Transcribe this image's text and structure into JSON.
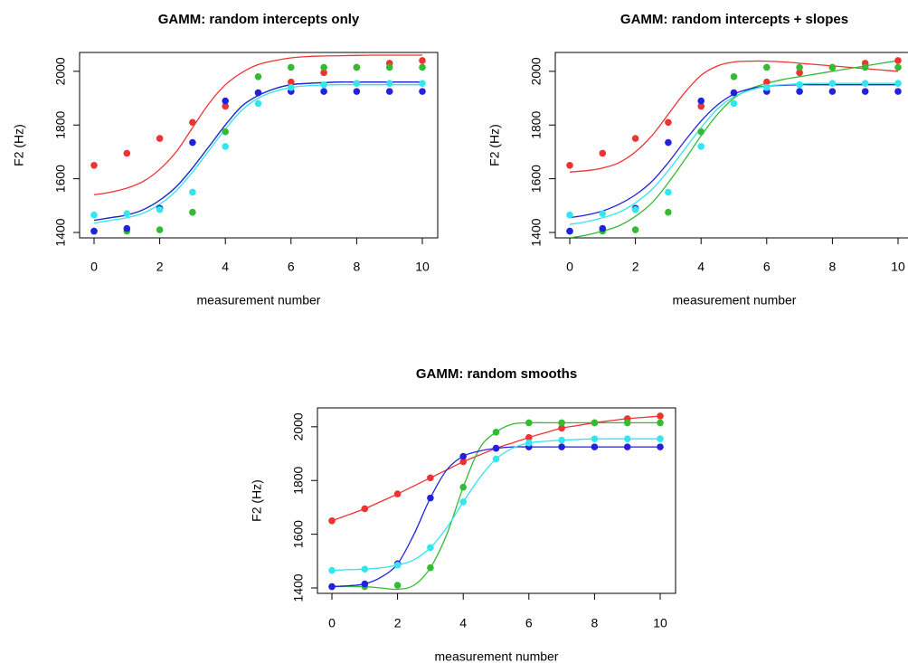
{
  "chart_data": [
    {
      "type": "scatter",
      "title": "GAMM: random intercepts only",
      "xlabel": "measurement number",
      "ylabel": "F2 (Hz)",
      "xlim": [
        0,
        10
      ],
      "ylim": [
        1400,
        2050
      ],
      "xticks": [
        "0",
        "2",
        "4",
        "6",
        "8",
        "10"
      ],
      "yticks": [
        "1400",
        "1600",
        "1800",
        "2000"
      ],
      "grid": false,
      "series": [
        {
          "color": "#ee3333",
          "points": [
            1650,
            1695,
            1750,
            1810,
            1870,
            1920,
            1960,
            1995,
            2015,
            2030,
            2040
          ],
          "curve": [
            1540,
            1550,
            1565,
            1590,
            1635,
            1700,
            1790,
            1880,
            1950,
            1995,
            2025,
            2040,
            2050,
            2055,
            2057,
            2058,
            2059,
            2060,
            2060,
            2060,
            2060
          ]
        },
        {
          "color": "#33bb33",
          "points": [
            1405,
            1405,
            1410,
            1475,
            1775,
            1980,
            2015,
            2015,
            2015,
            2015,
            2015
          ],
          "curve": [
            1445,
            1455,
            1465,
            1485,
            1520,
            1570,
            1640,
            1720,
            1800,
            1870,
            1910,
            1935,
            1950,
            1955,
            1958,
            1960,
            1960,
            1960,
            1960,
            1960,
            1960
          ]
        },
        {
          "color": "#2222dd",
          "points": [
            1405,
            1415,
            1490,
            1735,
            1890,
            1920,
            1925,
            1925,
            1925,
            1925,
            1925
          ],
          "curve": [
            1445,
            1455,
            1465,
            1485,
            1520,
            1570,
            1640,
            1720,
            1800,
            1870,
            1910,
            1935,
            1950,
            1955,
            1958,
            1960,
            1960,
            1960,
            1960,
            1960,
            1960
          ]
        },
        {
          "color": "#33e5ee",
          "points": [
            1465,
            1470,
            1485,
            1550,
            1720,
            1880,
            1940,
            1950,
            1955,
            1955,
            1955
          ],
          "curve": [
            1435,
            1445,
            1455,
            1472,
            1505,
            1555,
            1625,
            1705,
            1785,
            1855,
            1900,
            1925,
            1940,
            1946,
            1949,
            1950,
            1950,
            1950,
            1950,
            1950,
            1950
          ]
        }
      ]
    },
    {
      "type": "scatter",
      "title": "GAMM: random intercepts + slopes",
      "xlabel": "measurement number",
      "ylabel": "F2 (Hz)",
      "xlim": [
        0,
        10
      ],
      "ylim": [
        1400,
        2050
      ],
      "xticks": [
        "0",
        "2",
        "4",
        "6",
        "8",
        "10"
      ],
      "yticks": [
        "1400",
        "1600",
        "1800",
        "2000"
      ],
      "grid": false,
      "series": [
        {
          "color": "#ee3333",
          "points": [
            1650,
            1695,
            1750,
            1810,
            1870,
            1920,
            1960,
            1995,
            2015,
            2030,
            2040
          ],
          "curve": [
            1625,
            1630,
            1640,
            1660,
            1700,
            1760,
            1840,
            1920,
            1985,
            2020,
            2035,
            2038,
            2038,
            2035,
            2030,
            2025,
            2020,
            2015,
            2010,
            2005,
            2000
          ]
        },
        {
          "color": "#33bb33",
          "points": [
            1405,
            1405,
            1410,
            1475,
            1775,
            1980,
            2015,
            2015,
            2015,
            2015,
            2015
          ],
          "curve": [
            1380,
            1390,
            1405,
            1425,
            1460,
            1510,
            1585,
            1670,
            1760,
            1840,
            1900,
            1935,
            1955,
            1970,
            1980,
            1990,
            2000,
            2010,
            2020,
            2030,
            2040
          ]
        },
        {
          "color": "#2222dd",
          "points": [
            1405,
            1415,
            1490,
            1735,
            1890,
            1920,
            1925,
            1925,
            1925,
            1925,
            1925
          ],
          "curve": [
            1455,
            1465,
            1480,
            1505,
            1540,
            1590,
            1660,
            1740,
            1815,
            1875,
            1915,
            1935,
            1945,
            1948,
            1950,
            1950,
            1950,
            1950,
            1950,
            1950,
            1950
          ]
        },
        {
          "color": "#33e5ee",
          "points": [
            1465,
            1470,
            1485,
            1550,
            1720,
            1880,
            1940,
            1950,
            1955,
            1955,
            1955
          ],
          "curve": [
            1430,
            1440,
            1455,
            1475,
            1510,
            1560,
            1630,
            1710,
            1790,
            1860,
            1905,
            1930,
            1945,
            1950,
            1953,
            1955,
            1955,
            1955,
            1955,
            1955,
            1955
          ]
        }
      ]
    },
    {
      "type": "scatter",
      "title": "GAMM: random smooths",
      "xlabel": "measurement number",
      "ylabel": "F2 (Hz)",
      "xlim": [
        0,
        10
      ],
      "ylim": [
        1400,
        2050
      ],
      "xticks": [
        "0",
        "2",
        "4",
        "6",
        "8",
        "10"
      ],
      "yticks": [
        "1400",
        "1600",
        "1800",
        "2000"
      ],
      "grid": false,
      "series": [
        {
          "color": "#ee3333",
          "points": [
            1650,
            1695,
            1750,
            1810,
            1870,
            1920,
            1960,
            1995,
            2015,
            2030,
            2040
          ],
          "curve": [
            1650,
            1672,
            1695,
            1722,
            1750,
            1780,
            1810,
            1840,
            1870,
            1895,
            1920,
            1940,
            1960,
            1978,
            1995,
            2005,
            2015,
            2023,
            2030,
            2035,
            2040
          ]
        },
        {
          "color": "#33bb33",
          "points": [
            1405,
            1405,
            1410,
            1475,
            1775,
            1980,
            2015,
            2015,
            2015,
            2015,
            2015
          ],
          "curve": [
            1405,
            1405,
            1405,
            1400,
            1395,
            1410,
            1475,
            1600,
            1775,
            1920,
            1980,
            2010,
            2015,
            2015,
            2015,
            2015,
            2015,
            2015,
            2015,
            2015,
            2015
          ]
        },
        {
          "color": "#2222dd",
          "points": [
            1405,
            1415,
            1490,
            1735,
            1890,
            1920,
            1925,
            1925,
            1925,
            1925,
            1925
          ],
          "curve": [
            1405,
            1408,
            1415,
            1440,
            1490,
            1600,
            1735,
            1840,
            1890,
            1910,
            1920,
            1925,
            1925,
            1925,
            1925,
            1925,
            1925,
            1925,
            1925,
            1925,
            1925
          ]
        },
        {
          "color": "#33e5ee",
          "points": [
            1465,
            1470,
            1485,
            1550,
            1720,
            1880,
            1940,
            1950,
            1955,
            1955,
            1955
          ],
          "curve": [
            1465,
            1468,
            1470,
            1475,
            1485,
            1505,
            1550,
            1625,
            1720,
            1810,
            1880,
            1920,
            1940,
            1946,
            1950,
            1953,
            1955,
            1955,
            1955,
            1955,
            1955
          ]
        }
      ]
    }
  ]
}
